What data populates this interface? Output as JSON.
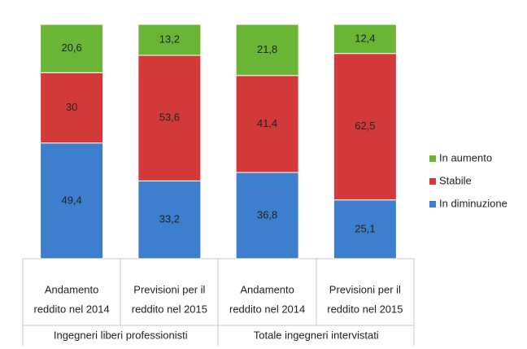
{
  "chart_data": {
    "type": "stacked_bar",
    "categories": [
      [
        "Andamento",
        "reddito nel 2014"
      ],
      [
        "Previsioni per il",
        "reddito nel 2015"
      ],
      [
        "Andamento",
        "reddito nel 2014"
      ],
      [
        "Previsioni per il",
        "reddito nel 2015"
      ]
    ],
    "groups": [
      "Ingegneri liberi professionisti",
      "Totale ingegneri intervistati"
    ],
    "series": [
      {
        "name": "In diminuzione",
        "color": "#3d7fcc",
        "values": [
          49.4,
          33.2,
          36.8,
          25.1
        ],
        "value_labels": [
          "49,4",
          "33,2",
          "36,8",
          "25,1"
        ]
      },
      {
        "name": "Stabile",
        "color": "#d23a3a",
        "values": [
          30,
          53.6,
          41.4,
          62.5
        ],
        "value_labels": [
          "30",
          "53,6",
          "41,4",
          "62,5"
        ]
      },
      {
        "name": "In aumento",
        "color": "#6ab536",
        "values": [
          20.6,
          13.2,
          21.8,
          12.4
        ],
        "value_labels": [
          "20,6",
          "13,2",
          "21,8",
          "12,4"
        ]
      }
    ],
    "legend": "right"
  }
}
